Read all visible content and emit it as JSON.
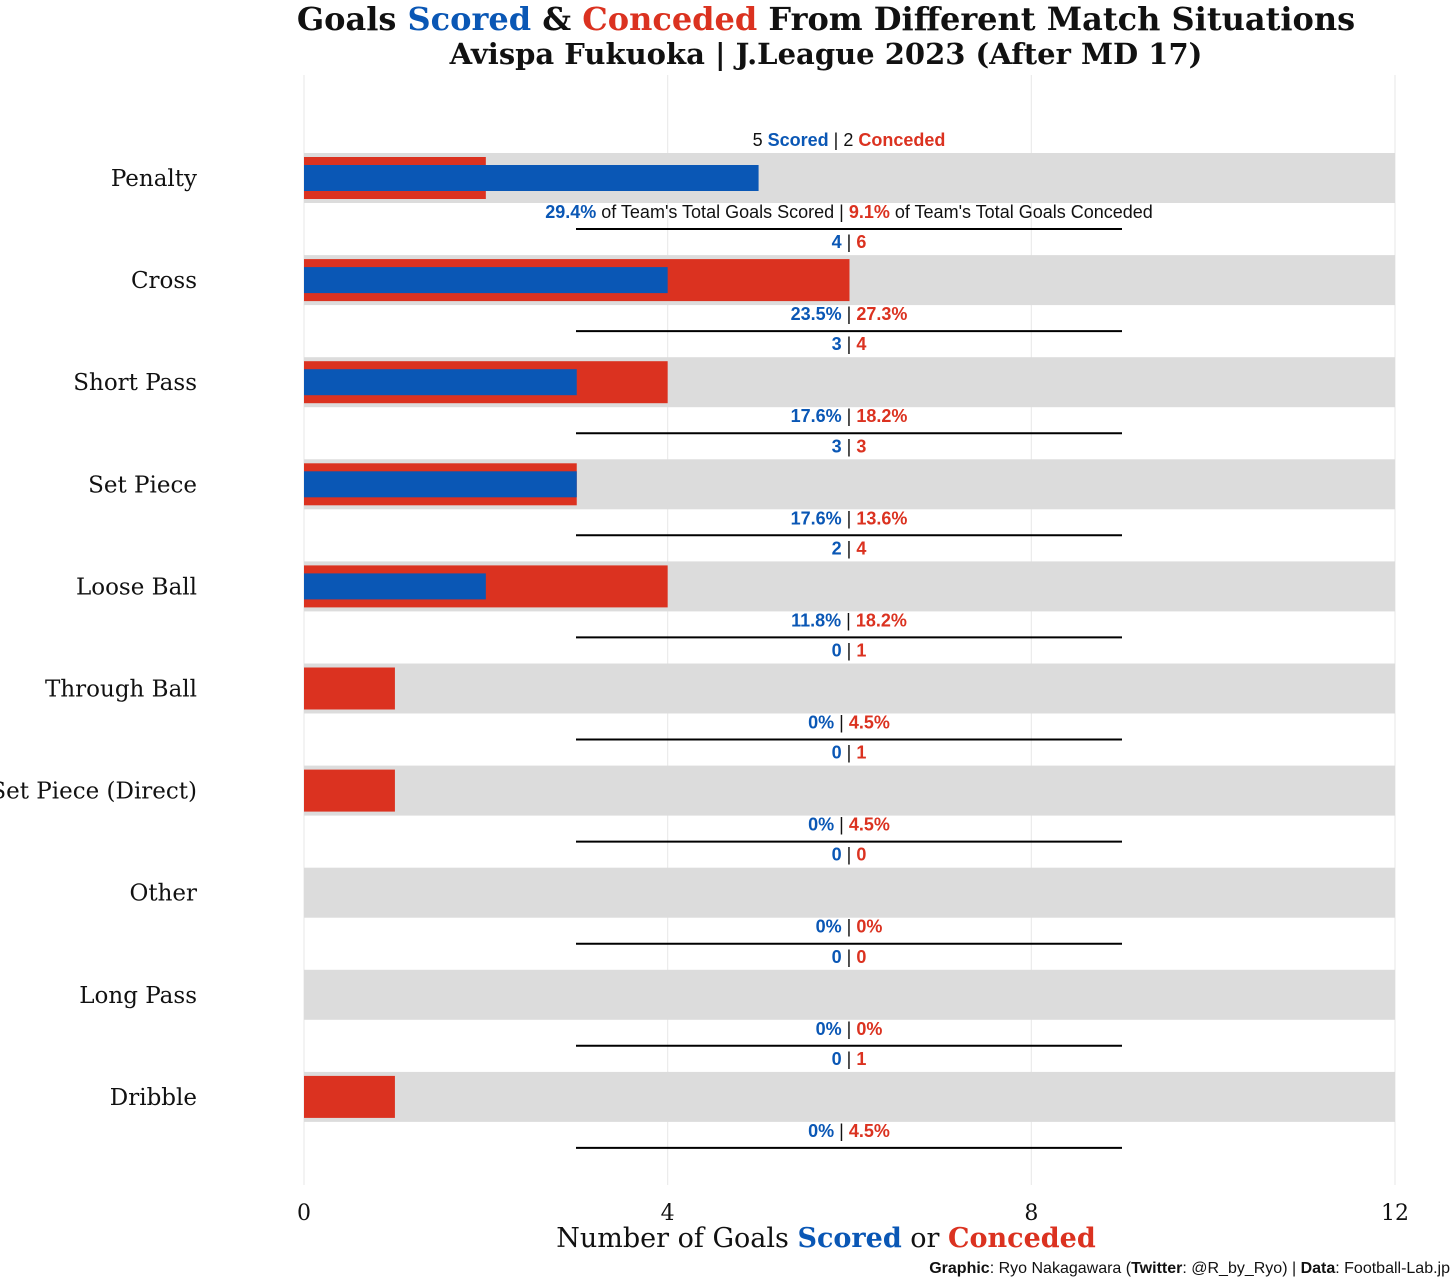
{
  "colors": {
    "scored": "#0a57b5",
    "conceded": "#db3220",
    "track": "#dcdcdc",
    "text": "#111111",
    "grid": "#ebebeb"
  },
  "title": {
    "part1": "Goals ",
    "scored": "Scored",
    "part2": " & ",
    "conceded": "Conceded",
    "part3": " From Different Match Situations"
  },
  "subtitle": "Avispa Fukuoka | J.League 2023 (After MD 17)",
  "xaxis": {
    "part1": "Number of Goals ",
    "scored": "Scored",
    "part2": " or ",
    "conceded": "Conceded"
  },
  "caption": {
    "graphic_label": "Graphic",
    "graphic_value": ": Ryo Nakagawara (",
    "twitter_label": "Twitter",
    "twitter_value": ": @R_by_Ryo) | ",
    "data_label": "Data",
    "data_value": ": Football-Lab.jp"
  },
  "first_row_labels": {
    "scored_word": "Scored",
    "conceded_word": "Conceded",
    "scored_pct_suffix": " of Team's Total Goals Scored",
    "conceded_pct_suffix": " of Team's Total Goals Conceded"
  },
  "chart_data": {
    "type": "bar",
    "orientation": "horizontal",
    "categories": [
      "Penalty",
      "Cross",
      "Short Pass",
      "Set Piece",
      "Loose Ball",
      "Through Ball",
      "Set Piece (Direct)",
      "Other",
      "Long Pass",
      "Dribble"
    ],
    "series": [
      {
        "name": "Scored",
        "values": [
          5,
          4,
          3,
          3,
          2,
          0,
          0,
          0,
          0,
          0
        ],
        "percent": [
          "29.4%",
          "23.5%",
          "17.6%",
          "17.6%",
          "11.8%",
          "0%",
          "0%",
          "0%",
          "0%",
          "0%"
        ]
      },
      {
        "name": "Conceded",
        "values": [
          2,
          6,
          4,
          3,
          4,
          1,
          1,
          0,
          0,
          1
        ],
        "percent": [
          "9.1%",
          "27.3%",
          "18.2%",
          "13.6%",
          "18.2%",
          "4.5%",
          "4.5%",
          "0%",
          "0%",
          "4.5%"
        ]
      }
    ],
    "xlim": [
      0,
      12
    ],
    "xticks": [
      0,
      4,
      8,
      12
    ],
    "grid": true
  }
}
